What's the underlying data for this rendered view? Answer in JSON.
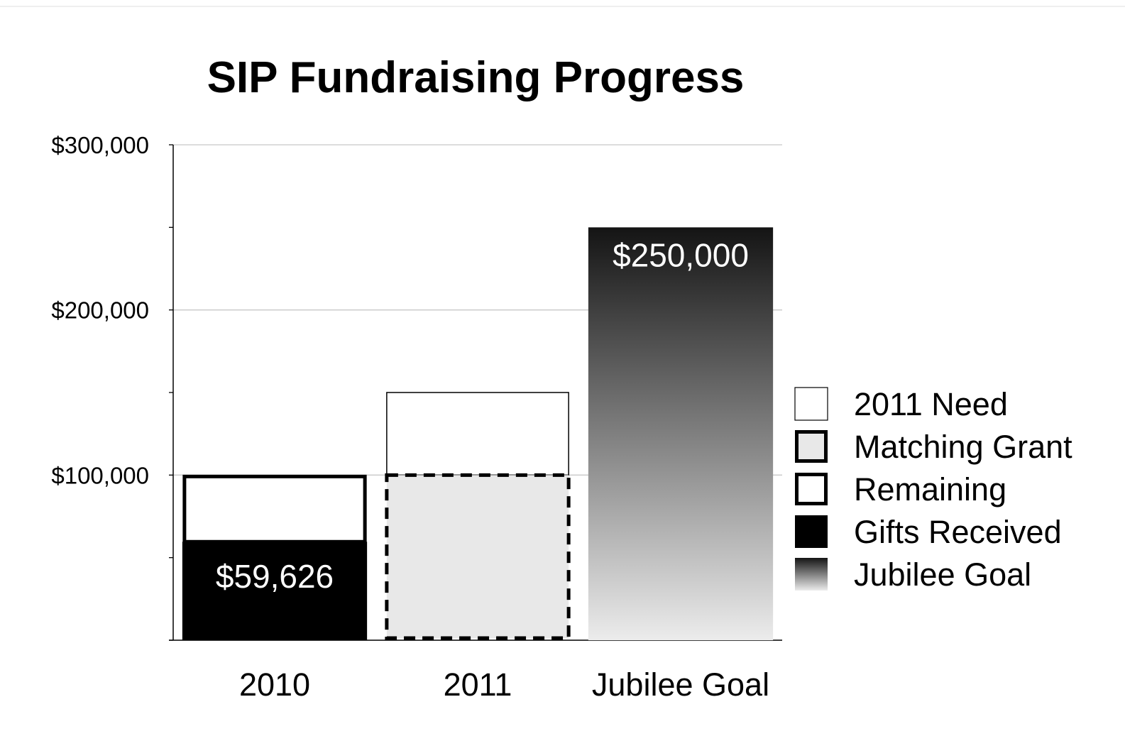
{
  "chart_data": {
    "type": "bar",
    "title": "SIP Fundraising Progress",
    "xlabel": "",
    "ylabel": "",
    "ylim": [
      0,
      300000
    ],
    "y_ticks": [
      {
        "value": 100000,
        "label": "$100,000"
      },
      {
        "value": 200000,
        "label": "$200,000"
      },
      {
        "value": 300000,
        "label": "$300,000"
      }
    ],
    "grid": true,
    "categories": [
      "2010",
      "2011",
      "Jubilee Goal"
    ],
    "series": [
      {
        "name": "Gifts Received",
        "values": [
          59626,
          null,
          null
        ],
        "color": "#000000"
      },
      {
        "name": "Remaining",
        "values": [
          40374,
          null,
          null
        ],
        "color": "#ffffff"
      },
      {
        "name": "Matching Grant",
        "values": [
          null,
          100000,
          null
        ],
        "color": "#e8e8e8"
      },
      {
        "name": "2011 Need",
        "values": [
          null,
          50000,
          null
        ],
        "color": "#ffffff"
      },
      {
        "name": "Jubilee Goal",
        "values": [
          null,
          null,
          250000
        ],
        "color": "#1a1a1a"
      }
    ],
    "data_labels": [
      {
        "category": "2010",
        "text": "$59,626"
      },
      {
        "category": "Jubilee Goal",
        "text": "$250,000"
      }
    ],
    "legend": {
      "position": "right",
      "entries": [
        "2011 Need",
        "Matching Grant",
        "Remaining",
        "Gifts Received",
        "Jubilee Goal"
      ]
    }
  }
}
